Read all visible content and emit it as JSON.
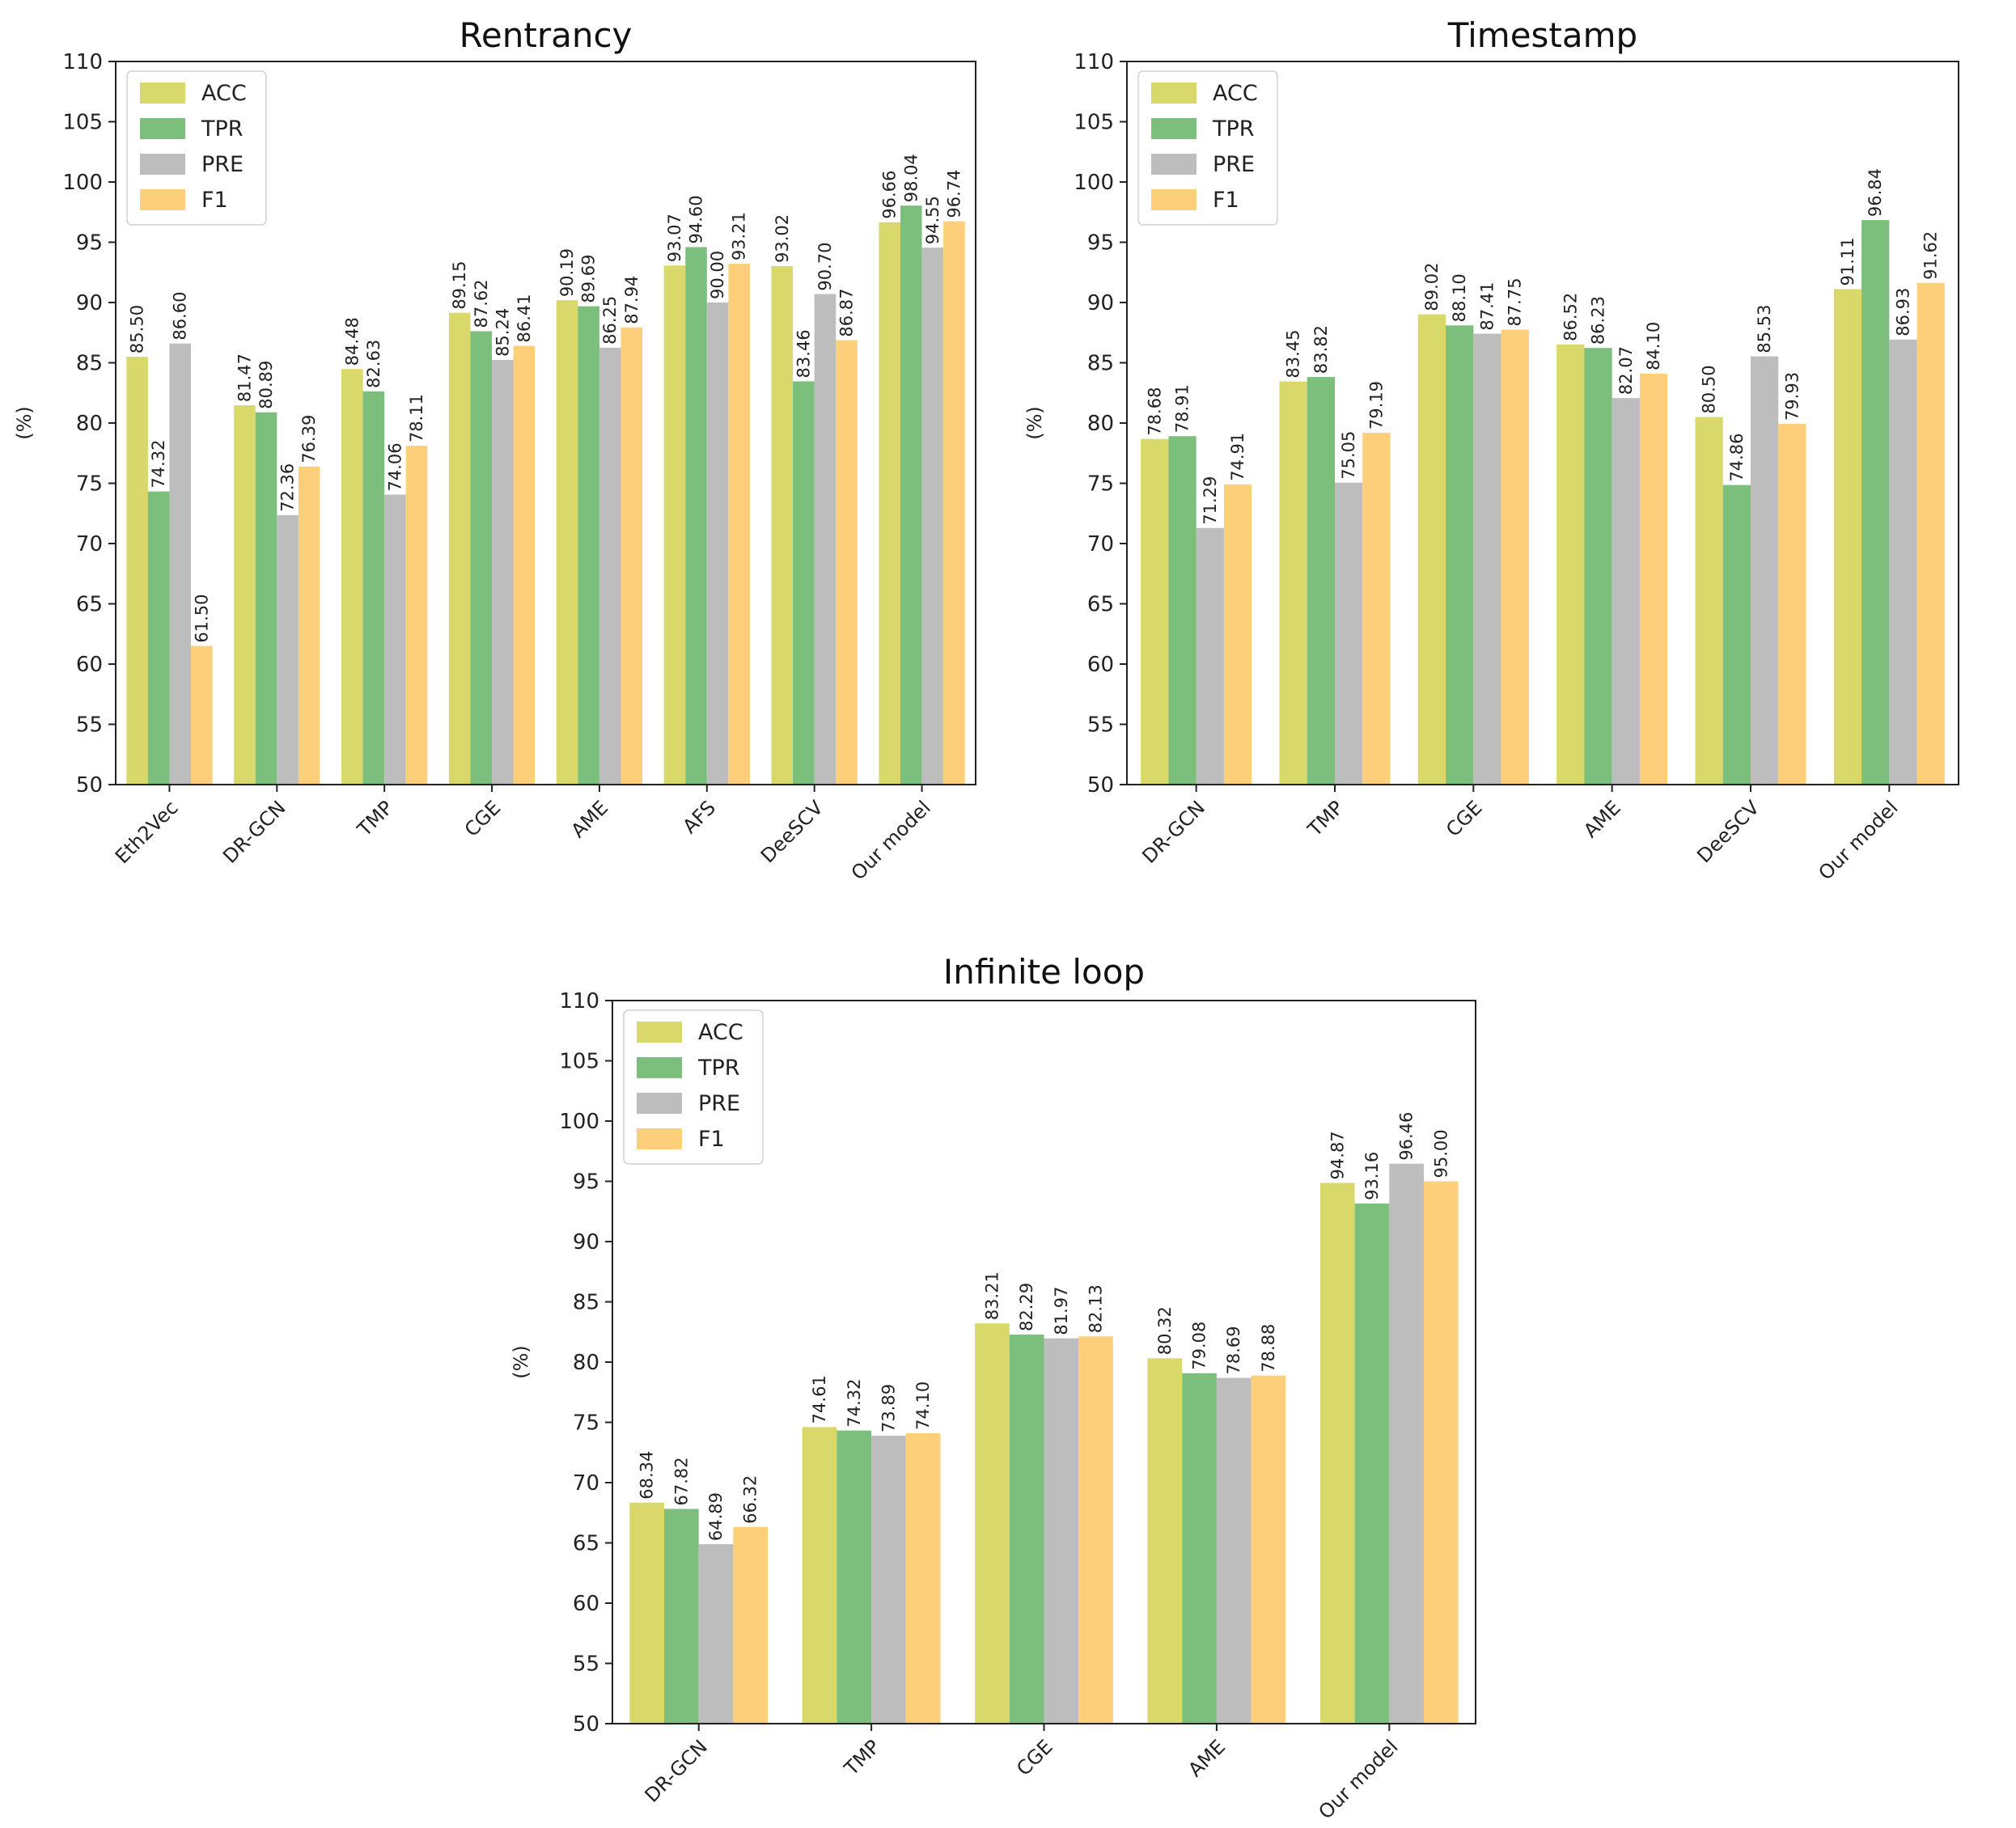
{
  "colors": {
    "ACC": "#d9d96b",
    "TPR": "#7cbf7c",
    "PRE": "#bdbdbd",
    "F1": "#fdcf7a"
  },
  "chart_data": [
    {
      "type": "bar",
      "title": "Rentrancy",
      "xlabel": "",
      "ylabel": "(%)",
      "ylim": [
        50,
        110
      ],
      "yticks": [
        "50",
        "55",
        "60",
        "65",
        "70",
        "75",
        "80",
        "85",
        "90",
        "95",
        "100",
        "105",
        "110"
      ],
      "legend": "top-left",
      "categories": [
        "Eth2Vec",
        "DR-GCN",
        "TMP",
        "CGE",
        "AME",
        "AFS",
        "DeeSCV",
        "Our model"
      ],
      "series": [
        {
          "name": "ACC",
          "values": [
            85.5,
            81.47,
            84.48,
            89.15,
            90.19,
            93.07,
            93.02,
            96.66
          ],
          "labels": [
            "85.50",
            "81.47",
            "84.48",
            "89.15",
            "90.19",
            "93.07",
            "93.02",
            "96.66"
          ]
        },
        {
          "name": "TPR",
          "values": [
            74.32,
            80.89,
            82.63,
            87.62,
            89.69,
            94.6,
            83.46,
            98.04
          ],
          "labels": [
            "74.32",
            "80.89",
            "82.63",
            "87.62",
            "89.69",
            "94.60",
            "83.46",
            "98.04"
          ]
        },
        {
          "name": "PRE",
          "values": [
            86.6,
            72.36,
            74.06,
            85.24,
            86.25,
            90.0,
            90.7,
            94.55
          ],
          "labels": [
            "86.60",
            "72.36",
            "74.06",
            "85.24",
            "86.25",
            "90.00",
            "90.70",
            "94.55"
          ]
        },
        {
          "name": "F1",
          "values": [
            61.5,
            76.39,
            78.11,
            86.41,
            87.94,
            93.21,
            86.87,
            96.74
          ],
          "labels": [
            "61.50",
            "76.39",
            "78.11",
            "86.41",
            "87.94",
            "93.21",
            "86.87",
            "96.74"
          ]
        }
      ]
    },
    {
      "type": "bar",
      "title": "Timestamp",
      "xlabel": "",
      "ylabel": "(%)",
      "ylim": [
        50,
        110
      ],
      "yticks": [
        "50",
        "55",
        "60",
        "65",
        "70",
        "75",
        "80",
        "85",
        "90",
        "95",
        "100",
        "105",
        "110"
      ],
      "legend": "top-left",
      "categories": [
        "DR-GCN",
        "TMP",
        "CGE",
        "AME",
        "DeeSCV",
        "Our model"
      ],
      "series": [
        {
          "name": "ACC",
          "values": [
            78.68,
            83.45,
            89.02,
            86.52,
            80.5,
            91.11
          ],
          "labels": [
            "78.68",
            "83.45",
            "89.02",
            "86.52",
            "80.50",
            "91.11"
          ]
        },
        {
          "name": "TPR",
          "values": [
            78.91,
            83.82,
            88.1,
            86.23,
            74.86,
            96.84
          ],
          "labels": [
            "78.91",
            "83.82",
            "88.10",
            "86.23",
            "74.86",
            "96.84"
          ]
        },
        {
          "name": "PRE",
          "values": [
            71.29,
            75.05,
            87.41,
            82.07,
            85.53,
            86.93
          ],
          "labels": [
            "71.29",
            "75.05",
            "87.41",
            "82.07",
            "85.53",
            "86.93"
          ]
        },
        {
          "name": "F1",
          "values": [
            74.91,
            79.19,
            87.75,
            84.1,
            79.93,
            91.62
          ],
          "labels": [
            "74.91",
            "79.19",
            "87.75",
            "84.10",
            "79.93",
            "91.62"
          ]
        }
      ]
    },
    {
      "type": "bar",
      "title": "Infinite loop",
      "xlabel": "",
      "ylabel": "(%)",
      "ylim": [
        50,
        110
      ],
      "yticks": [
        "50",
        "55",
        "60",
        "65",
        "70",
        "75",
        "80",
        "85",
        "90",
        "95",
        "100",
        "105",
        "110"
      ],
      "legend": "top-left",
      "categories": [
        "DR-GCN",
        "TMP",
        "CGE",
        "AME",
        "Our model"
      ],
      "series": [
        {
          "name": "ACC",
          "values": [
            68.34,
            74.61,
            83.21,
            80.32,
            94.87
          ],
          "labels": [
            "68.34",
            "74.61",
            "83.21",
            "80.32",
            "94.87"
          ]
        },
        {
          "name": "TPR",
          "values": [
            67.82,
            74.32,
            82.29,
            79.08,
            93.16
          ],
          "labels": [
            "67.82",
            "74.32",
            "82.29",
            "79.08",
            "93.16"
          ]
        },
        {
          "name": "PRE",
          "values": [
            64.89,
            73.89,
            81.97,
            78.69,
            96.46
          ],
          "labels": [
            "64.89",
            "73.89",
            "81.97",
            "78.69",
            "96.46"
          ]
        },
        {
          "name": "F1",
          "values": [
            66.32,
            74.1,
            82.13,
            78.88,
            95.0
          ],
          "labels": [
            "66.32",
            "74.10",
            "82.13",
            "78.88",
            "95.00"
          ]
        }
      ]
    }
  ]
}
